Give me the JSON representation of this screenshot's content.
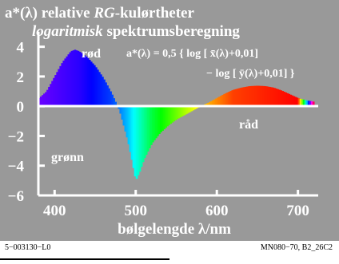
{
  "title_line1": {
    "part1": "a*(λ) relative ",
    "part2": "RG",
    "part3": "-kulørtheter"
  },
  "title_line2": {
    "part1": "logaritmisk",
    "part2": " spektrumsberegning"
  },
  "formula_line1": "a*(λ) = 0,5 { log [ x̄(λ)+0,01]",
  "formula_line2": "− log [ ȳ(λ)+0,01] }",
  "region_labels": {
    "red_upper": "rød",
    "red_lower": "råd",
    "green": "grønn"
  },
  "footer": {
    "left": "5−003130−L0",
    "right": "MN080−70, B2_26C2"
  },
  "colors": {
    "background": "#999999",
    "text": "#ffffff",
    "axis": "#ffffff"
  },
  "chart_data": {
    "type": "area",
    "xlabel": "bølgelengde λ/nm",
    "ylabel": "",
    "xlim": [
      380,
      725
    ],
    "ylim": [
      -6,
      5
    ],
    "x_ticks": [
      400,
      500,
      600,
      700
    ],
    "y_ticks": [
      -6,
      -4,
      -2,
      0,
      2,
      4
    ],
    "x_tick_labels": [
      "400",
      "500",
      "600",
      "700"
    ],
    "y_tick_labels": [
      "−6",
      "−4",
      "−2",
      "0",
      "2",
      "4"
    ],
    "grid": false,
    "fill": "spectral colors between curve and zero line",
    "series": [
      {
        "x": [
          380,
          390,
          400,
          410,
          420,
          425,
          430,
          440,
          450,
          460,
          470,
          480,
          490,
          495,
          500,
          505,
          510,
          520,
          530,
          540,
          550,
          560,
          570,
          580,
          590,
          600,
          610,
          620,
          630,
          640,
          650,
          660,
          670,
          680,
          690,
          700,
          710,
          720
        ],
        "y": [
          0.5,
          1.0,
          2.0,
          3.0,
          3.7,
          3.8,
          3.7,
          3.3,
          2.7,
          1.9,
          0.9,
          -0.3,
          -2.3,
          -3.6,
          -5.0,
          -4.4,
          -3.6,
          -2.5,
          -1.8,
          -1.3,
          -0.9,
          -0.6,
          -0.3,
          0.0,
          0.25,
          0.55,
          0.85,
          1.1,
          1.25,
          1.35,
          1.38,
          1.35,
          1.25,
          1.05,
          0.8,
          0.55,
          0.4,
          0.3
        ]
      }
    ]
  }
}
